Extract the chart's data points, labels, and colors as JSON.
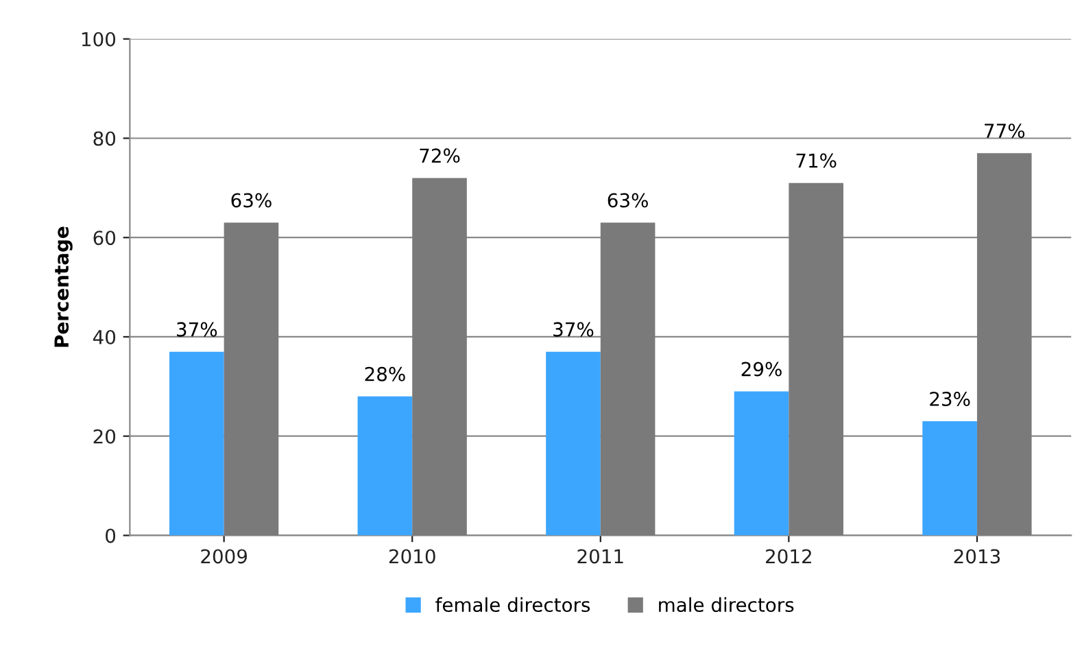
{
  "chart_data": {
    "type": "bar",
    "ylabel": "Percentage",
    "categories": [
      "2009",
      "2010",
      "2011",
      "2012",
      "2013"
    ],
    "series": [
      {
        "name": "female directors",
        "color": "#3ca6ff",
        "values": [
          37,
          28,
          37,
          29,
          23
        ],
        "value_labels": [
          "37%",
          "28%",
          "37%",
          "29%",
          "23%"
        ]
      },
      {
        "name": "male directors",
        "color": "#7a7a7a",
        "values": [
          63,
          72,
          63,
          71,
          77
        ],
        "value_labels": [
          "63%",
          "72%",
          "63%",
          "71%",
          "77%"
        ]
      }
    ],
    "ylim": [
      0,
      100
    ],
    "yticks": [
      0,
      20,
      40,
      60,
      80,
      100
    ],
    "grid": "y",
    "legend": "bottom"
  }
}
